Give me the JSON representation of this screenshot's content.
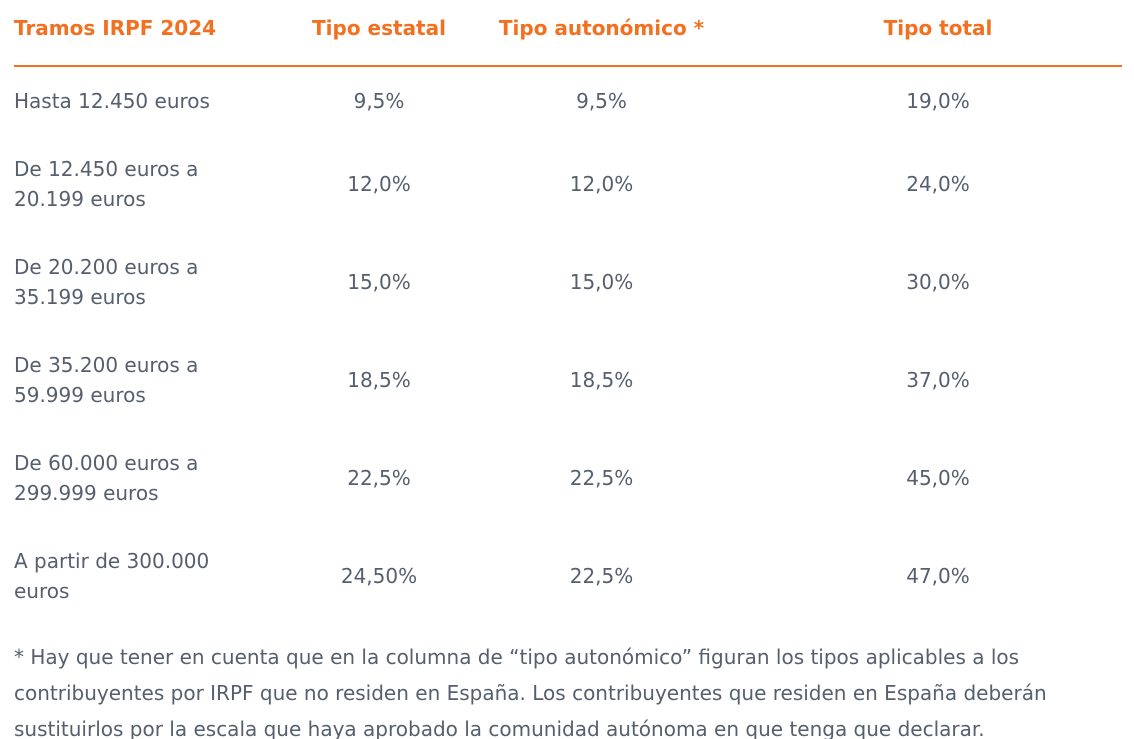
{
  "colors": {
    "accent_orange": "#f2701f",
    "body_text": "#565f6e",
    "background": "#ffffff"
  },
  "chart_data": {
    "type": "table",
    "title": "Tramos IRPF 2024",
    "columns": [
      "Tramos IRPF 2024",
      "Tipo estatal",
      "Tipo autonómico *",
      "Tipo total"
    ],
    "rows": [
      [
        "Hasta 12.450 euros",
        "9,5%",
        "9,5%",
        "19,0%"
      ],
      [
        "De 12.450 euros a 20.199 euros",
        "12,0%",
        "12,0%",
        "24,0%"
      ],
      [
        "De 20.200 euros a 35.199 euros",
        "15,0%",
        "15,0%",
        "30,0%"
      ],
      [
        "De 35.200 euros a 59.999 euros",
        "18,5%",
        "18,5%",
        "37,0%"
      ],
      [
        "De 60.000 euros a 299.999 euros",
        "22,5%",
        "22,5%",
        "45,0%"
      ],
      [
        "A partir de 300.000 euros",
        "24,50%",
        "22,5%",
        "47,0%"
      ]
    ],
    "layout": {
      "header_color": "#f2701f",
      "header_divider": true,
      "first_column_align": "left",
      "value_columns_align": "center"
    }
  },
  "footnote": "* Hay que tener en cuenta que en la columna de “tipo autonómico” figuran los tipos aplicables a los contribuyentes por IRPF que no residen en España. Los contribuyentes que residen en España deberán sustituirlos por la escala que haya aprobado la comunidad autónoma en que tenga que declarar."
}
